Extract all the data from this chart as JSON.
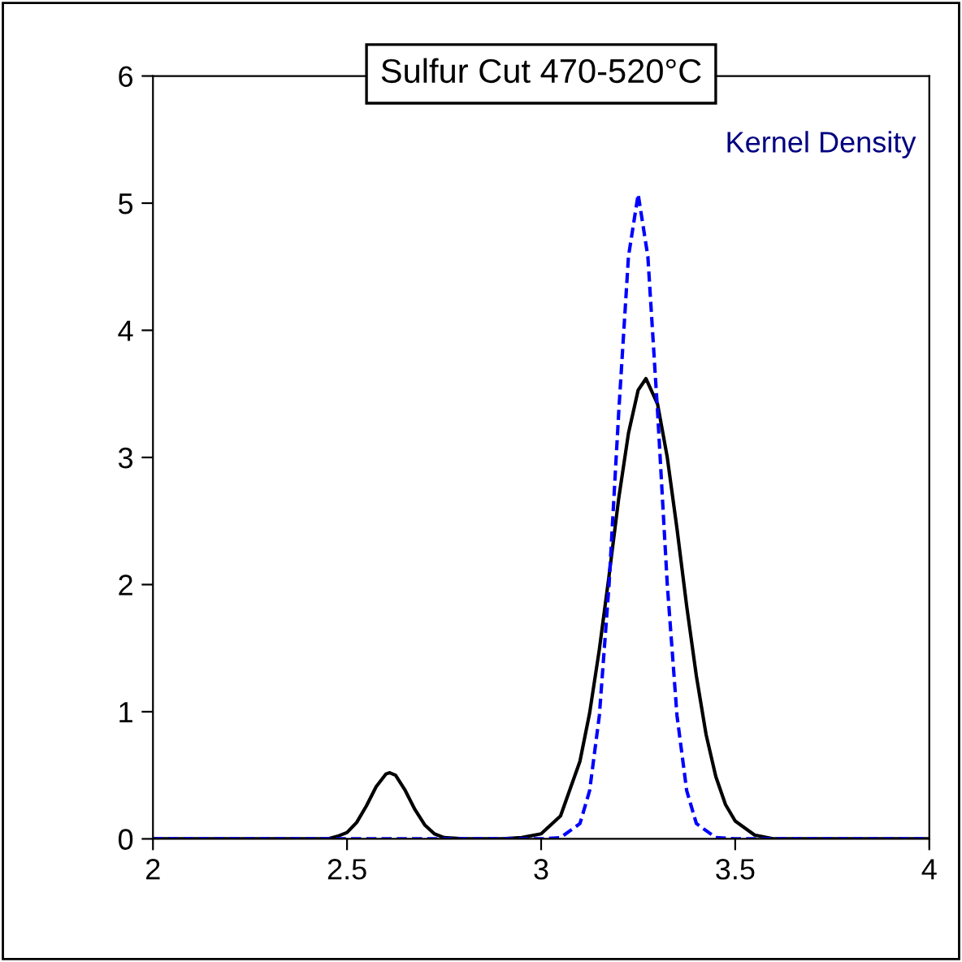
{
  "chart_data": {
    "type": "line",
    "title": "Sulfur Cut 470-520°C",
    "annotations": [
      "Kernel Density"
    ],
    "xlim": [
      2,
      4
    ],
    "xticks": [
      2,
      2.5,
      3,
      3.5,
      4
    ],
    "ylim": [
      0,
      6
    ],
    "yticks": [
      0,
      1,
      2,
      3,
      4,
      5,
      6
    ],
    "grid": false,
    "legend": false,
    "marker": "none",
    "series": [
      {
        "color": "#000000",
        "line_style": "solid",
        "x": [
          2,
          2.4,
          2.45,
          2.475,
          2.5,
          2.525,
          2.55,
          2.575,
          2.6,
          2.61,
          2.625,
          2.65,
          2.675,
          2.7,
          2.725,
          2.75,
          2.8,
          2.9,
          2.95,
          3.0,
          3.05,
          3.1,
          3.125,
          3.15,
          3.175,
          3.2,
          3.225,
          3.25,
          3.27,
          3.3,
          3.325,
          3.35,
          3.375,
          3.4,
          3.425,
          3.45,
          3.475,
          3.5,
          3.55,
          3.6,
          4
        ],
        "values": [
          0,
          0,
          0,
          0.02,
          0.05,
          0.13,
          0.26,
          0.41,
          0.51,
          0.52,
          0.5,
          0.38,
          0.23,
          0.11,
          0.04,
          0.01,
          0,
          0,
          0.01,
          0.04,
          0.18,
          0.61,
          0.99,
          1.49,
          2.07,
          2.68,
          3.19,
          3.53,
          3.62,
          3.42,
          3.0,
          2.44,
          1.83,
          1.28,
          0.82,
          0.49,
          0.27,
          0.14,
          0.03,
          0,
          0
        ]
      },
      {
        "color": "#0000ff",
        "line_style": "dashed",
        "x": [
          2,
          3.0,
          3.05,
          3.1,
          3.125,
          3.15,
          3.175,
          3.2,
          3.225,
          3.25,
          3.275,
          3.3,
          3.325,
          3.35,
          3.375,
          3.4,
          3.45,
          3.5,
          4
        ],
        "values": [
          0,
          0,
          0.01,
          0.12,
          0.38,
          0.97,
          2.0,
          3.36,
          4.58,
          5.07,
          4.58,
          3.36,
          2.0,
          0.97,
          0.38,
          0.12,
          0.01,
          0,
          0
        ]
      }
    ]
  }
}
